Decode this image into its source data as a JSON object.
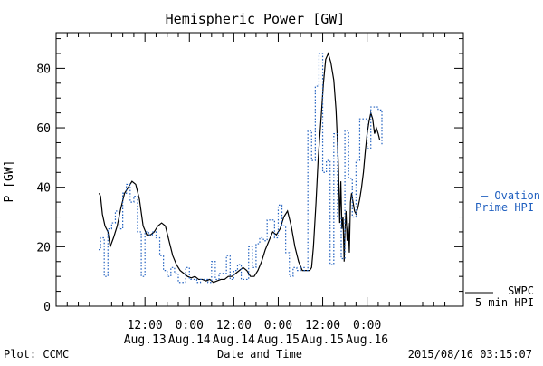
{
  "chart_data": {
    "type": "line",
    "title": "Hemispheric Power [GW]",
    "xlabel": "Date and Time",
    "ylabel": "P [GW]",
    "ylim": [
      0,
      92
    ],
    "xlim": [
      -24,
      86
    ],
    "yticks": [
      0,
      20,
      40,
      60,
      80
    ],
    "xticks": [
      {
        "x": 0,
        "time": "12:00",
        "date": "Aug.13"
      },
      {
        "x": 12,
        "time": "0:00",
        "date": "Aug.14"
      },
      {
        "x": 24,
        "time": "12:00",
        "date": "Aug.14"
      },
      {
        "x": 36,
        "time": "0:00",
        "date": "Aug.15"
      },
      {
        "x": 48,
        "time": "12:00",
        "date": "Aug.15"
      },
      {
        "x": 60,
        "time": "0:00",
        "date": "Aug.16"
      }
    ],
    "x_units": "hours relative to 2015-08-13 12:00 UT",
    "series": [
      {
        "name": "SWPC 5-min HPI",
        "color": "#000000",
        "style": "solid",
        "points": [
          [
            -12.4,
            38
          ],
          [
            -12,
            37
          ],
          [
            -11.5,
            31
          ],
          [
            -10.8,
            27
          ],
          [
            -10.0,
            25
          ],
          [
            -9.4,
            20
          ],
          [
            -8.5,
            23
          ],
          [
            -7.5,
            27
          ],
          [
            -6.5,
            33
          ],
          [
            -5.5,
            38
          ],
          [
            -4.5,
            40
          ],
          [
            -3.5,
            42
          ],
          [
            -2.5,
            41
          ],
          [
            -1.5,
            36
          ],
          [
            -0.5,
            27
          ],
          [
            0.5,
            24
          ],
          [
            1.5,
            24
          ],
          [
            2.5,
            25
          ],
          [
            3.5,
            27
          ],
          [
            4.5,
            28
          ],
          [
            5.5,
            27
          ],
          [
            6.5,
            22
          ],
          [
            7.5,
            17
          ],
          [
            8.5,
            14
          ],
          [
            9.5,
            12
          ],
          [
            10.5,
            11
          ],
          [
            11.5,
            10
          ],
          [
            12.5,
            9.5
          ],
          [
            13.5,
            10
          ],
          [
            14.5,
            9
          ],
          [
            15.5,
            9
          ],
          [
            16.5,
            8.5
          ],
          [
            17.5,
            9
          ],
          [
            18.5,
            8
          ],
          [
            19.5,
            8.5
          ],
          [
            20.5,
            9
          ],
          [
            21.5,
            9
          ],
          [
            22.5,
            10
          ],
          [
            23.5,
            10
          ],
          [
            24.5,
            11
          ],
          [
            25.5,
            12
          ],
          [
            26.5,
            13
          ],
          [
            27.5,
            12
          ],
          [
            28.5,
            10
          ],
          [
            29.5,
            10
          ],
          [
            30.5,
            12
          ],
          [
            31.5,
            15
          ],
          [
            32.5,
            19
          ],
          [
            33.5,
            22
          ],
          [
            34.5,
            25
          ],
          [
            35.5,
            24
          ],
          [
            36.5,
            26
          ],
          [
            37.5,
            30
          ],
          [
            38.5,
            32
          ],
          [
            39.5,
            27
          ],
          [
            40.5,
            20
          ],
          [
            41.5,
            15
          ],
          [
            42.5,
            12
          ],
          [
            43.5,
            12
          ],
          [
            44.5,
            12
          ],
          [
            45.0,
            13
          ],
          [
            45.5,
            20
          ],
          [
            46.2,
            35
          ],
          [
            46.8,
            50
          ],
          [
            47.5,
            62
          ],
          [
            48.2,
            75
          ],
          [
            48.8,
            83
          ],
          [
            49.5,
            85
          ],
          [
            50.2,
            82
          ],
          [
            51.0,
            76
          ],
          [
            51.6,
            66
          ],
          [
            52.0,
            55
          ],
          [
            52.3,
            45
          ],
          [
            52.6,
            28
          ],
          [
            52.9,
            42
          ],
          [
            53.2,
            26
          ],
          [
            53.5,
            30
          ],
          [
            53.8,
            15
          ],
          [
            54.0,
            25
          ],
          [
            54.3,
            32
          ],
          [
            54.6,
            22
          ],
          [
            54.9,
            28
          ],
          [
            55.2,
            18
          ],
          [
            55.5,
            35
          ],
          [
            55.8,
            38
          ],
          [
            56.2,
            35
          ],
          [
            56.6,
            32
          ],
          [
            57.0,
            31
          ],
          [
            57.5,
            33
          ],
          [
            58.0,
            36
          ],
          [
            58.5,
            40
          ],
          [
            59.0,
            45
          ],
          [
            59.5,
            52
          ],
          [
            60.0,
            58
          ],
          [
            60.5,
            62
          ],
          [
            61.0,
            65
          ],
          [
            61.5,
            63
          ],
          [
            62.0,
            58
          ],
          [
            62.5,
            60
          ],
          [
            63.0,
            58
          ],
          [
            63.4,
            56
          ]
        ]
      },
      {
        "name": "Ovation Prime HPI",
        "color": "#1f5fbf",
        "style": "dotted-steps",
        "points": [
          [
            -12.5,
            19
          ],
          [
            -12,
            23
          ],
          [
            -11,
            10
          ],
          [
            -10,
            26
          ],
          [
            -9,
            28
          ],
          [
            -8,
            32
          ],
          [
            -7,
            26
          ],
          [
            -6,
            38
          ],
          [
            -5,
            41
          ],
          [
            -4,
            35
          ],
          [
            -3,
            37
          ],
          [
            -2,
            25
          ],
          [
            -1,
            10
          ],
          [
            0,
            25
          ],
          [
            1,
            24
          ],
          [
            2,
            25
          ],
          [
            3,
            23
          ],
          [
            4,
            17
          ],
          [
            5,
            12
          ],
          [
            6,
            10
          ],
          [
            7,
            13
          ],
          [
            8,
            11
          ],
          [
            9,
            8
          ],
          [
            10,
            8
          ],
          [
            11,
            13
          ],
          [
            12,
            9
          ],
          [
            13,
            9
          ],
          [
            14,
            8
          ],
          [
            15,
            9
          ],
          [
            16,
            9
          ],
          [
            17,
            8
          ],
          [
            18,
            15
          ],
          [
            19,
            9
          ],
          [
            20,
            11
          ],
          [
            21,
            11
          ],
          [
            22,
            17
          ],
          [
            23,
            9
          ],
          [
            24,
            12
          ],
          [
            25,
            14
          ],
          [
            26,
            9
          ],
          [
            27,
            9
          ],
          [
            28,
            20
          ],
          [
            29,
            13
          ],
          [
            30,
            21
          ],
          [
            31,
            23
          ],
          [
            32,
            22
          ],
          [
            33,
            29
          ],
          [
            34,
            29
          ],
          [
            35,
            23
          ],
          [
            36,
            34
          ],
          [
            37,
            27
          ],
          [
            38,
            18
          ],
          [
            39,
            10
          ],
          [
            40,
            13
          ],
          [
            41,
            12
          ],
          [
            42,
            13
          ],
          [
            43,
            12
          ],
          [
            44,
            59
          ],
          [
            45,
            49
          ],
          [
            46,
            74
          ],
          [
            47,
            85
          ],
          [
            48,
            45
          ],
          [
            49,
            49
          ],
          [
            50,
            14
          ],
          [
            51,
            58
          ],
          [
            52,
            30
          ],
          [
            53,
            16
          ],
          [
            54,
            59
          ],
          [
            55,
            43
          ],
          [
            56,
            30
          ],
          [
            57,
            49
          ],
          [
            58,
            63
          ],
          [
            59,
            63
          ],
          [
            60,
            53
          ],
          [
            61,
            67
          ],
          [
            62,
            67
          ],
          [
            63,
            66
          ],
          [
            64,
            54
          ]
        ]
      }
    ],
    "legend": [
      {
        "text": "– Ovation",
        "color": "#1f5fbf"
      },
      {
        "text": "Prime HPI",
        "color": "#1f5fbf"
      },
      {
        "text": "SWPC",
        "color": "#000000"
      },
      {
        "text": "5-min HPI",
        "color": "#000000"
      }
    ]
  },
  "footer": {
    "plot_label": "Plot: CCMC",
    "timestamp": "2015/08/16 03:15:07"
  }
}
